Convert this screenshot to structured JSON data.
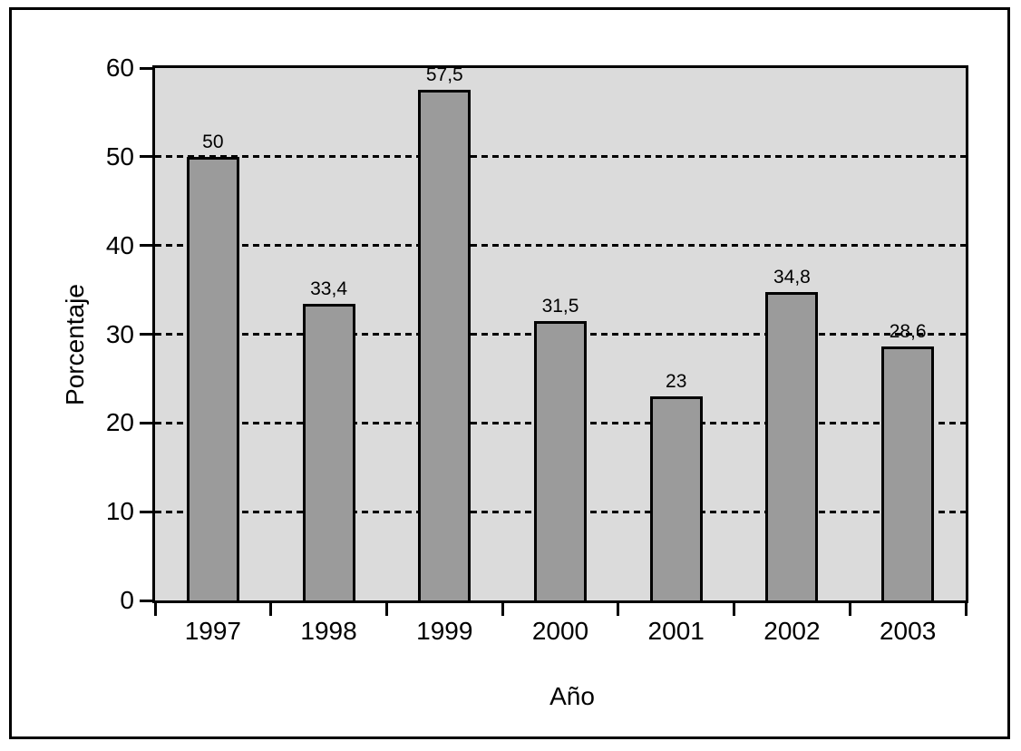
{
  "figure": {
    "background": "#FFFFFF",
    "frame_border_color": "#000000"
  },
  "chart_data": {
    "type": "bar",
    "title": "",
    "xlabel": "Año",
    "ylabel": "Porcentaje",
    "categories": [
      "1997",
      "1998",
      "1999",
      "2000",
      "2001",
      "2002",
      "2003"
    ],
    "values": [
      50,
      33.4,
      57.5,
      31.5,
      23,
      34.8,
      28.6
    ],
    "value_labels": [
      "50",
      "33,4",
      "57,5",
      "31,5",
      "23",
      "34,8",
      "28,6"
    ],
    "ylim": [
      0,
      60
    ],
    "yticks": [
      0,
      10,
      20,
      30,
      40,
      50,
      60
    ],
    "ytick_labels": [
      "0",
      "10",
      "20",
      "30",
      "40",
      "50",
      "60"
    ],
    "gridlines": {
      "orientation": "horizontal",
      "style": "dashed",
      "at": [
        10,
        20,
        30,
        40,
        50
      ],
      "color": "#000000"
    },
    "legend_position": "none",
    "colors": {
      "bar_fill": "#9B9B9B",
      "bar_border": "#000000",
      "plot_background": "#DBDBDB",
      "grid_color": "#000000",
      "text_color": "#000000"
    }
  }
}
